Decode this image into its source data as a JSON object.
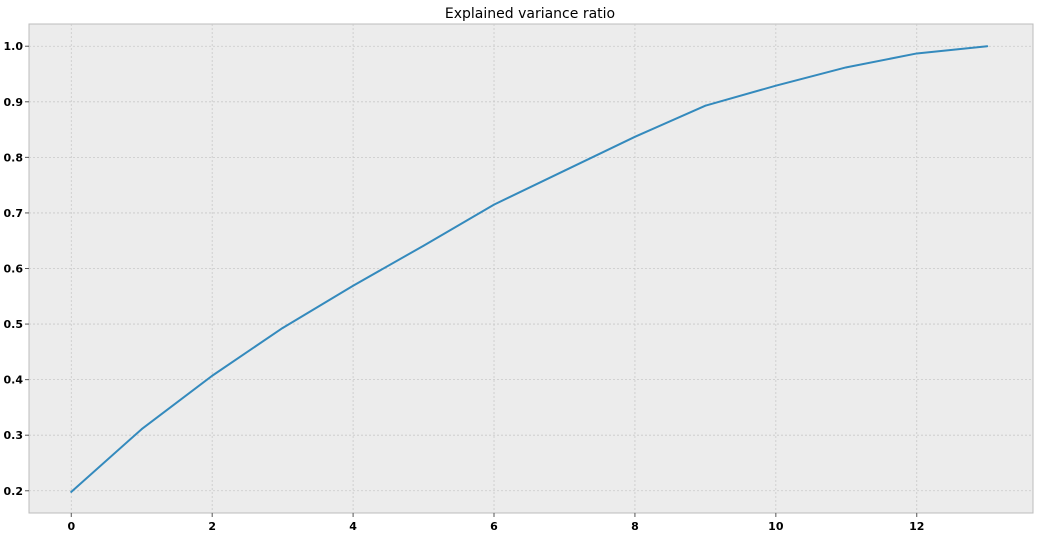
{
  "chart_data": {
    "type": "line",
    "title": "Explained variance ratio",
    "xlabel": "",
    "ylabel": "",
    "x": [
      0,
      1,
      2,
      3,
      4,
      5,
      6,
      7,
      8,
      9,
      10,
      11,
      12,
      13
    ],
    "series": [
      {
        "values": [
          0.198,
          0.311,
          0.407,
          0.493,
          0.569,
          0.641,
          0.715,
          0.776,
          0.837,
          0.893,
          0.929,
          0.962,
          0.987,
          1.0
        ],
        "color": "#348abd"
      }
    ],
    "xlim": [
      -0.6,
      13.65
    ],
    "ylim": [
      0.16,
      1.04
    ],
    "x_ticks": [
      0,
      2,
      4,
      6,
      8,
      10,
      12
    ],
    "y_ticks": [
      0.2,
      0.3,
      0.4,
      0.5,
      0.6,
      0.7,
      0.8,
      0.9,
      1.0
    ],
    "y_tick_labels": [
      "0.2",
      "0.3",
      "0.4",
      "0.5",
      "0.6",
      "0.7",
      "0.8",
      "0.9",
      "1.0"
    ],
    "grid": true,
    "background": "#ececec",
    "grid_color": "#c8c8c8"
  }
}
